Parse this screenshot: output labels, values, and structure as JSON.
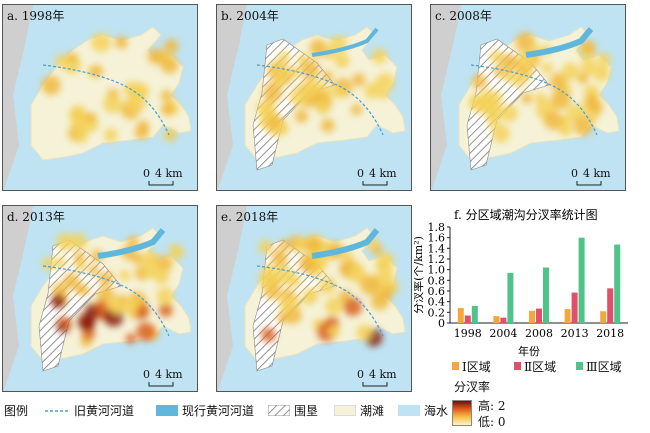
{
  "panels": [
    {
      "label": "a. 1998年"
    },
    {
      "label": "b. 2004年"
    },
    {
      "label": "c. 2008年"
    },
    {
      "label": "d. 2013年"
    },
    {
      "label": "e. 2018年"
    }
  ],
  "scale_bar": {
    "zero": "0",
    "dist": "4 km"
  },
  "legend": {
    "title": "图例",
    "old_river": "旧黄河河道",
    "current_river": "现行黄河河道",
    "reclaim": "围垦",
    "tidal_flat": "潮滩",
    "sea": "海水",
    "density_title": "分汊率",
    "high": "高: 2",
    "low": "低: 0"
  },
  "colors": {
    "sea": "#bfe3f2",
    "land": "#f5f2d8",
    "mainland": "#cfcfcf",
    "river_current": "#5fb8dc",
    "old_river": "#4a9fd0",
    "zone1": "#f5a83a",
    "zone2": "#e0506a",
    "zone3": "#4fc48a"
  },
  "chart_data": {
    "type": "bar",
    "title": "f. 分区域潮沟分汊率统计图",
    "ylabel": "分汊率(个/km²)",
    "xlabel": "年份",
    "categories": [
      "1998",
      "2004",
      "2008",
      "2013",
      "2018"
    ],
    "ylim": [
      0,
      1.8
    ],
    "yticks": [
      "0",
      "0.2",
      "0.4",
      "0.6",
      "0.8",
      "1.0",
      "1.2",
      "1.4",
      "1.6",
      "1.8"
    ],
    "series": [
      {
        "name": "Ⅰ区域",
        "values": [
          0.28,
          0.13,
          0.23,
          0.26,
          0.22
        ]
      },
      {
        "name": "Ⅱ区域",
        "values": [
          0.14,
          0.1,
          0.27,
          0.57,
          0.65
        ]
      },
      {
        "name": "Ⅲ区域",
        "values": [
          0.32,
          0.94,
          1.04,
          1.6,
          1.47
        ]
      }
    ]
  }
}
